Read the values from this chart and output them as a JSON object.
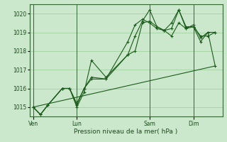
{
  "background_color": "#cce8cc",
  "plot_bg_color": "#cce8cc",
  "grid_color": "#99cc99",
  "line_color": "#1a5c1a",
  "xlabel": "Pression niveau de la mer( hPa )",
  "ylim": [
    1014.5,
    1020.5
  ],
  "yticks": [
    1015,
    1016,
    1017,
    1018,
    1019,
    1020
  ],
  "xtick_labels": [
    "Ven",
    "Lun",
    "Sam",
    "Dim"
  ],
  "xtick_positions": [
    0,
    24,
    64,
    88
  ],
  "xlim": [
    -2,
    104
  ],
  "base": 1015.0,
  "trend_x": [
    0,
    100
  ],
  "trend_y": [
    1015.0,
    1017.2
  ],
  "s1_x": [
    0,
    4,
    8,
    16,
    20,
    24,
    28,
    32,
    40,
    52,
    56,
    60,
    64,
    68,
    72,
    76,
    80,
    84,
    88,
    92,
    96,
    100
  ],
  "s1_y": [
    1015.0,
    1014.6,
    1015.1,
    1016.0,
    1016.0,
    1015.0,
    1015.8,
    1017.5,
    1016.6,
    1017.8,
    1018.0,
    1019.5,
    1019.6,
    1019.3,
    1019.1,
    1019.2,
    1020.2,
    1019.2,
    1019.3,
    1018.5,
    1019.0,
    1019.0
  ],
  "s2_x": [
    0,
    4,
    8,
    16,
    20,
    24,
    28,
    32,
    40,
    52,
    56,
    60,
    64,
    68,
    72,
    76,
    80,
    84,
    88,
    92,
    96,
    100
  ],
  "s2_y": [
    1015.0,
    1014.6,
    1015.1,
    1016.0,
    1016.0,
    1015.2,
    1016.0,
    1016.6,
    1016.5,
    1018.5,
    1019.4,
    1019.7,
    1019.5,
    1019.2,
    1019.1,
    1019.5,
    1020.2,
    1019.3,
    1019.3,
    1018.8,
    1018.8,
    1019.0
  ],
  "s3_x": [
    0,
    4,
    8,
    16,
    20,
    24,
    28,
    32,
    40,
    52,
    56,
    60,
    64,
    68,
    72,
    76,
    80,
    84,
    88,
    92,
    96,
    100
  ],
  "s3_y": [
    1015.0,
    1014.6,
    1015.1,
    1016.0,
    1016.0,
    1015.1,
    1016.0,
    1016.5,
    1016.5,
    1017.8,
    1018.8,
    1019.6,
    1020.2,
    1019.3,
    1019.1,
    1018.8,
    1019.5,
    1019.2,
    1019.4,
    1018.7,
    1019.0,
    1017.2
  ]
}
